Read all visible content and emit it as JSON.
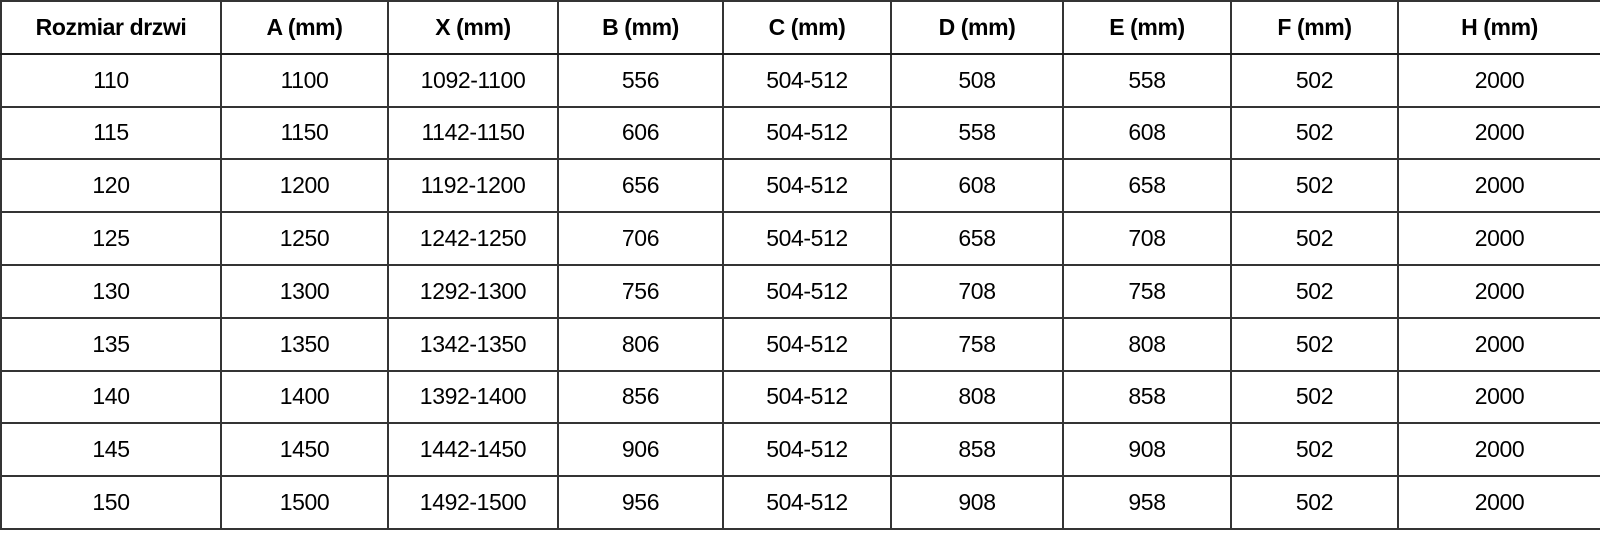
{
  "chart_data": {
    "type": "table",
    "title": "",
    "columns": [
      "Rozmiar drzwi",
      "A (mm)",
      "X (mm)",
      "B (mm)",
      "C (mm)",
      "D (mm)",
      "E (mm)",
      "F (mm)",
      "H (mm)"
    ],
    "rows": [
      [
        "110",
        "1100",
        "1092-1100",
        "556",
        "504-512",
        "508",
        "558",
        "502",
        "2000"
      ],
      [
        "115",
        "1150",
        "1142-1150",
        "606",
        "504-512",
        "558",
        "608",
        "502",
        "2000"
      ],
      [
        "120",
        "1200",
        "1192-1200",
        "656",
        "504-512",
        "608",
        "658",
        "502",
        "2000"
      ],
      [
        "125",
        "1250",
        "1242-1250",
        "706",
        "504-512",
        "658",
        "708",
        "502",
        "2000"
      ],
      [
        "130",
        "1300",
        "1292-1300",
        "756",
        "504-512",
        "708",
        "758",
        "502",
        "2000"
      ],
      [
        "135",
        "1350",
        "1342-1350",
        "806",
        "504-512",
        "758",
        "808",
        "502",
        "2000"
      ],
      [
        "140",
        "1400",
        "1392-1400",
        "856",
        "504-512",
        "808",
        "858",
        "502",
        "2000"
      ],
      [
        "145",
        "1450",
        "1442-1450",
        "906",
        "504-512",
        "858",
        "908",
        "502",
        "2000"
      ],
      [
        "150",
        "1500",
        "1492-1500",
        "956",
        "504-512",
        "908",
        "958",
        "502",
        "2000"
      ]
    ],
    "colors": {
      "text": "#000000",
      "grid_border": "#343434",
      "background": "#ffffff"
    }
  }
}
